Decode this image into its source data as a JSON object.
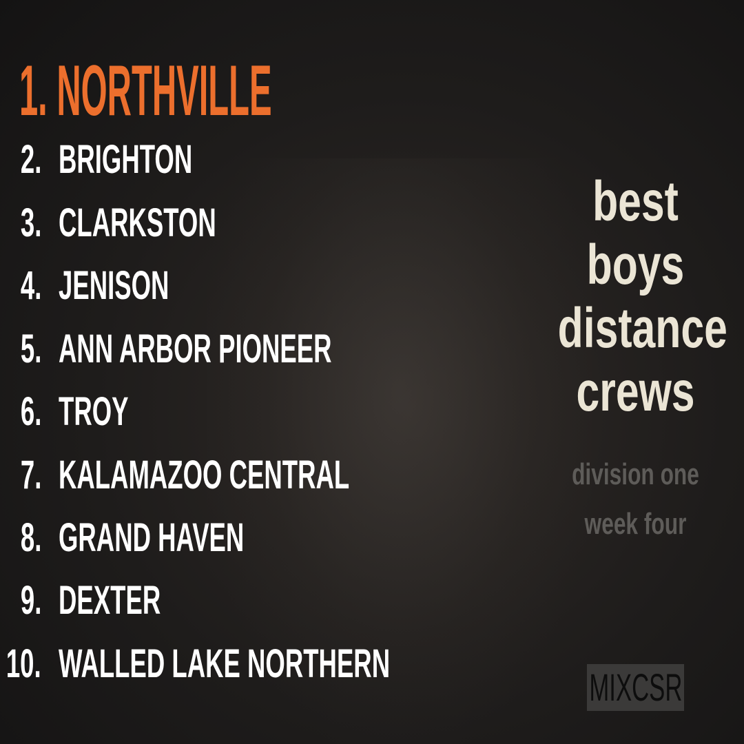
{
  "ranking": [
    {
      "rank": "1.",
      "team": "NORTHVILLE"
    },
    {
      "rank": "2.",
      "team": "BRIGHTON"
    },
    {
      "rank": "3.",
      "team": "CLARKSTON"
    },
    {
      "rank": "4.",
      "team": "JENISON"
    },
    {
      "rank": "5.",
      "team": "ANN ARBOR PIONEER"
    },
    {
      "rank": "6.",
      "team": "TROY"
    },
    {
      "rank": "7.",
      "team": "KALAMAZOO CENTRAL"
    },
    {
      "rank": "8.",
      "team": "GRAND HAVEN"
    },
    {
      "rank": "9.",
      "team": "DEXTER"
    },
    {
      "rank": "10.",
      "team": "WALLED LAKE NORTHERN"
    }
  ],
  "title_lines": [
    "best",
    "boys",
    "distance",
    "crews"
  ],
  "subtitle_lines": [
    "division one",
    "week four"
  ],
  "logo": "MIXCSR",
  "colors": {
    "accent": "#ec6f2d",
    "title": "#ebe5d5",
    "subtitle": "#5e5c59",
    "background": "#1e1c1b"
  }
}
